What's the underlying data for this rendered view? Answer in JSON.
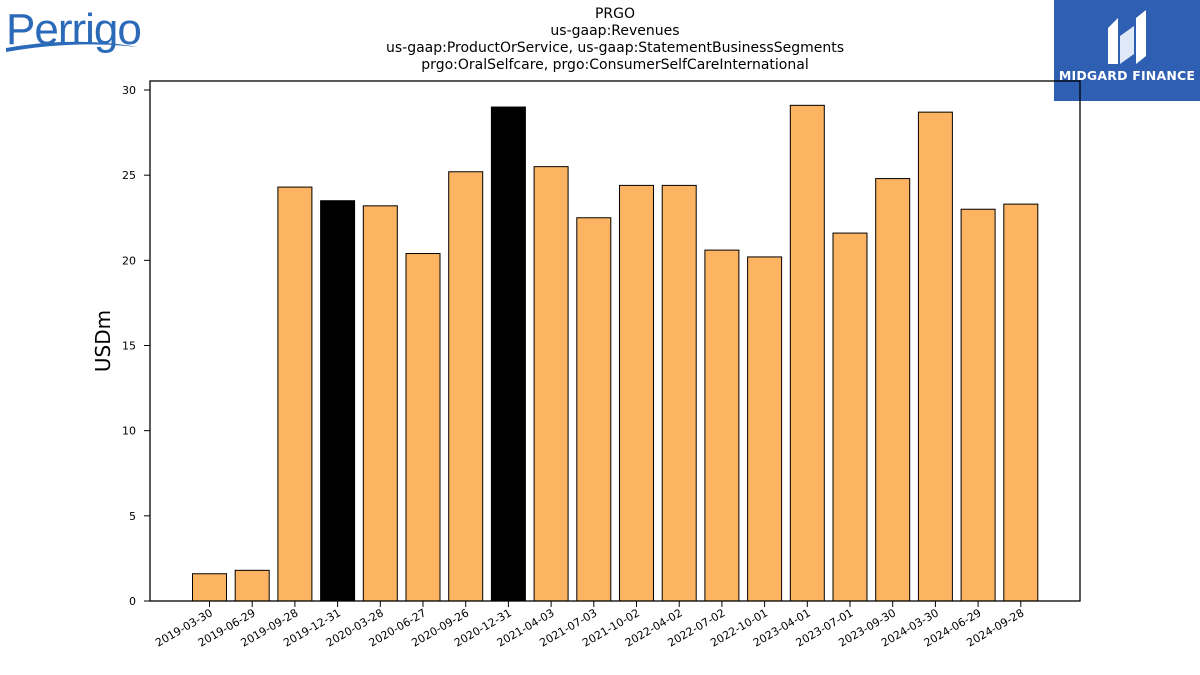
{
  "logos": {
    "left_text": "Perrigo",
    "right_text": "MIDGARD FINANCE"
  },
  "chart_data": {
    "type": "bar",
    "title_lines": [
      "PRGO",
      "us-gaap:Revenues",
      "us-gaap:ProductOrService, us-gaap:StatementBusinessSegments",
      "prgo:OralSelfcare, prgo:ConsumerSelfCareInternational"
    ],
    "xlabel": "",
    "ylabel": "USDm",
    "ylim": [
      0,
      30
    ],
    "yticks": [
      0,
      5,
      10,
      15,
      20,
      25,
      30
    ],
    "grid": false,
    "categories": [
      "2019-03-30",
      "2019-06-29",
      "2019-09-28",
      "2019-12-31",
      "2020-03-28",
      "2020-06-27",
      "2020-09-26",
      "2020-12-31",
      "2021-04-03",
      "2021-07-03",
      "2021-10-02",
      "2022-04-02",
      "2022-07-02",
      "2022-10-01",
      "2023-04-01",
      "2023-07-01",
      "2023-09-30",
      "2024-03-30",
      "2024-06-29",
      "2024-09-28"
    ],
    "values": [
      1.6,
      1.8,
      24.3,
      23.5,
      23.2,
      20.4,
      25.2,
      29.0,
      25.5,
      22.5,
      24.4,
      24.4,
      20.6,
      20.2,
      29.1,
      21.6,
      24.8,
      28.7,
      23.0,
      23.3
    ],
    "highlighted": [
      false,
      false,
      false,
      true,
      false,
      false,
      false,
      true,
      false,
      false,
      false,
      false,
      false,
      false,
      false,
      false,
      false,
      false,
      false,
      false
    ],
    "colors": {
      "bar": "#fdb462",
      "highlight": "#000000",
      "edge": "#000000"
    }
  }
}
